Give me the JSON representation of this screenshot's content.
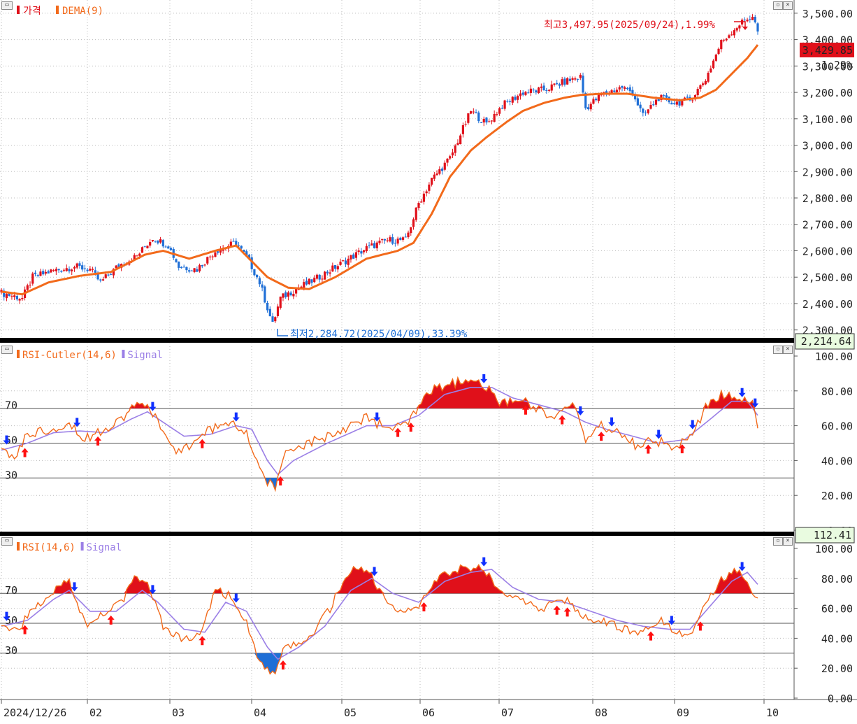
{
  "chart_data": {
    "type": "line",
    "x_ticks": [
      "2024/12/26",
      "02",
      "03",
      "04",
      "05",
      "06",
      "07",
      "08",
      "09",
      "10"
    ],
    "price_panel": {
      "legend": [
        "가격",
        "DEMA(9)"
      ],
      "y_ticks": [
        "3,500.00",
        "3,400.00",
        "3,300.00",
        "3,200.00",
        "3,100.00",
        "3,000.00",
        "2,900.00",
        "2,800.00",
        "2,700.00",
        "2,600.00",
        "2,500.00",
        "2,400.00",
        "2,300.00"
      ],
      "ylim": [
        2270,
        3550
      ],
      "current_price_label": "3,429.85",
      "current_change_label": "1.29%",
      "high_annotation": "최고3,497.95(2025/09/24),1.99%",
      "low_annotation": "최저2,284.72(2025/04/09),33.39%",
      "close_anchors": [
        [
          0,
          2440
        ],
        [
          8,
          2420
        ],
        [
          12,
          2500
        ],
        [
          20,
          2525
        ],
        [
          28,
          2540
        ],
        [
          34,
          2530
        ],
        [
          38,
          2480
        ],
        [
          45,
          2545
        ],
        [
          52,
          2580
        ],
        [
          58,
          2650
        ],
        [
          64,
          2620
        ],
        [
          68,
          2540
        ],
        [
          75,
          2530
        ],
        [
          82,
          2600
        ],
        [
          90,
          2630
        ],
        [
          95,
          2560
        ],
        [
          99,
          2480
        ],
        [
          104,
          2320
        ],
        [
          107,
          2420
        ],
        [
          112,
          2450
        ],
        [
          120,
          2490
        ],
        [
          130,
          2550
        ],
        [
          140,
          2610
        ],
        [
          148,
          2640
        ],
        [
          155,
          2640
        ],
        [
          160,
          2780
        ],
        [
          165,
          2870
        ],
        [
          172,
          2950
        ],
        [
          176,
          3040
        ],
        [
          180,
          3130
        ],
        [
          186,
          3080
        ],
        [
          192,
          3150
        ],
        [
          200,
          3200
        ],
        [
          208,
          3210
        ],
        [
          216,
          3240
        ],
        [
          222,
          3260
        ],
        [
          224,
          3140
        ],
        [
          230,
          3190
        ],
        [
          238,
          3220
        ],
        [
          242,
          3200
        ],
        [
          246,
          3110
        ],
        [
          252,
          3180
        ],
        [
          258,
          3160
        ],
        [
          264,
          3170
        ],
        [
          270,
          3250
        ],
        [
          276,
          3390
        ],
        [
          282,
          3450
        ],
        [
          286,
          3480
        ],
        [
          288,
          3490
        ],
        [
          290,
          3430
        ]
      ],
      "dema_anchors": [
        [
          0,
          2445
        ],
        [
          8,
          2435
        ],
        [
          18,
          2480
        ],
        [
          30,
          2505
        ],
        [
          42,
          2520
        ],
        [
          55,
          2585
        ],
        [
          62,
          2600
        ],
        [
          72,
          2570
        ],
        [
          82,
          2600
        ],
        [
          90,
          2620
        ],
        [
          96,
          2560
        ],
        [
          102,
          2500
        ],
        [
          110,
          2460
        ],
        [
          118,
          2455
        ],
        [
          128,
          2500
        ],
        [
          140,
          2570
        ],
        [
          152,
          2600
        ],
        [
          158,
          2630
        ],
        [
          165,
          2740
        ],
        [
          172,
          2880
        ],
        [
          180,
          2980
        ],
        [
          186,
          3030
        ],
        [
          194,
          3090
        ],
        [
          200,
          3130
        ],
        [
          208,
          3160
        ],
        [
          216,
          3180
        ],
        [
          222,
          3190
        ],
        [
          230,
          3195
        ],
        [
          240,
          3195
        ],
        [
          250,
          3180
        ],
        [
          260,
          3170
        ],
        [
          268,
          3180
        ],
        [
          274,
          3210
        ],
        [
          280,
          3270
        ],
        [
          286,
          3330
        ],
        [
          290,
          3380
        ]
      ]
    },
    "rsi_cutler_panel": {
      "legend": [
        "RSI-Cutler(14,6)",
        "Signal"
      ],
      "y_ticks": [
        "100.00",
        "80.00",
        "60.00",
        "40.00",
        "20.00",
        "0.00"
      ],
      "levels": [
        "70",
        "50",
        "30"
      ],
      "ylim": [
        0,
        100
      ],
      "axis_box_label": "2,214.64",
      "rsi_anchors": [
        [
          0,
          44
        ],
        [
          5,
          42
        ],
        [
          10,
          55
        ],
        [
          18,
          58
        ],
        [
          26,
          62
        ],
        [
          32,
          52
        ],
        [
          36,
          56
        ],
        [
          44,
          62
        ],
        [
          52,
          72
        ],
        [
          58,
          68
        ],
        [
          62,
          58
        ],
        [
          66,
          45
        ],
        [
          74,
          50
        ],
        [
          80,
          58
        ],
        [
          88,
          62
        ],
        [
          94,
          55
        ],
        [
          98,
          40
        ],
        [
          102,
          28
        ],
        [
          105,
          24
        ],
        [
          108,
          42
        ],
        [
          118,
          50
        ],
        [
          128,
          56
        ],
        [
          140,
          65
        ],
        [
          148,
          58
        ],
        [
          155,
          60
        ],
        [
          160,
          70
        ],
        [
          165,
          80
        ],
        [
          172,
          84
        ],
        [
          180,
          86
        ],
        [
          186,
          82
        ],
        [
          192,
          72
        ],
        [
          200,
          76
        ],
        [
          205,
          70
        ],
        [
          212,
          65
        ],
        [
          220,
          72
        ],
        [
          224,
          52
        ],
        [
          230,
          60
        ],
        [
          238,
          55
        ],
        [
          244,
          48
        ],
        [
          250,
          52
        ],
        [
          258,
          48
        ],
        [
          264,
          52
        ],
        [
          270,
          70
        ],
        [
          276,
          78
        ],
        [
          282,
          75
        ],
        [
          288,
          72
        ],
        [
          290,
          60
        ]
      ],
      "signal_anchors": [
        [
          0,
          46
        ],
        [
          10,
          50
        ],
        [
          20,
          56
        ],
        [
          30,
          57
        ],
        [
          40,
          56
        ],
        [
          50,
          64
        ],
        [
          56,
          68
        ],
        [
          62,
          62
        ],
        [
          70,
          54
        ],
        [
          80,
          55
        ],
        [
          90,
          60
        ],
        [
          96,
          58
        ],
        [
          102,
          40
        ],
        [
          106,
          32
        ],
        [
          112,
          40
        ],
        [
          125,
          50
        ],
        [
          140,
          60
        ],
        [
          150,
          60
        ],
        [
          160,
          66
        ],
        [
          170,
          78
        ],
        [
          180,
          82
        ],
        [
          188,
          82
        ],
        [
          196,
          76
        ],
        [
          206,
          72
        ],
        [
          216,
          68
        ],
        [
          224,
          62
        ],
        [
          232,
          58
        ],
        [
          242,
          54
        ],
        [
          252,
          50
        ],
        [
          262,
          52
        ],
        [
          272,
          64
        ],
        [
          280,
          74
        ],
        [
          286,
          74
        ],
        [
          290,
          66
        ]
      ]
    },
    "rsi_panel": {
      "legend": [
        "RSI(14,6)",
        "Signal"
      ],
      "y_ticks": [
        "100.00",
        "80.00",
        "60.00",
        "40.00",
        "20.00",
        "0.00"
      ],
      "levels": [
        "70",
        "50",
        "30"
      ],
      "ylim": [
        0,
        100
      ],
      "axis_box_label": "112.41",
      "rsi_anchors": [
        [
          0,
          48
        ],
        [
          6,
          46
        ],
        [
          14,
          62
        ],
        [
          22,
          76
        ],
        [
          26,
          80
        ],
        [
          30,
          56
        ],
        [
          34,
          48
        ],
        [
          40,
          58
        ],
        [
          46,
          64
        ],
        [
          52,
          82
        ],
        [
          56,
          76
        ],
        [
          62,
          48
        ],
        [
          70,
          38
        ],
        [
          76,
          42
        ],
        [
          82,
          72
        ],
        [
          88,
          68
        ],
        [
          94,
          50
        ],
        [
          98,
          30
        ],
        [
          102,
          18
        ],
        [
          105,
          14
        ],
        [
          108,
          32
        ],
        [
          118,
          40
        ],
        [
          126,
          60
        ],
        [
          130,
          74
        ],
        [
          136,
          88
        ],
        [
          142,
          82
        ],
        [
          148,
          62
        ],
        [
          155,
          58
        ],
        [
          160,
          60
        ],
        [
          166,
          78
        ],
        [
          174,
          86
        ],
        [
          182,
          88
        ],
        [
          188,
          80
        ],
        [
          192,
          70
        ],
        [
          200,
          64
        ],
        [
          208,
          60
        ],
        [
          216,
          66
        ],
        [
          224,
          54
        ],
        [
          232,
          50
        ],
        [
          240,
          46
        ],
        [
          246,
          44
        ],
        [
          252,
          52
        ],
        [
          258,
          46
        ],
        [
          264,
          42
        ],
        [
          270,
          64
        ],
        [
          276,
          80
        ],
        [
          282,
          86
        ],
        [
          288,
          72
        ],
        [
          290,
          68
        ]
      ],
      "signal_anchors": [
        [
          0,
          48
        ],
        [
          10,
          52
        ],
        [
          20,
          66
        ],
        [
          26,
          72
        ],
        [
          34,
          58
        ],
        [
          44,
          58
        ],
        [
          54,
          72
        ],
        [
          60,
          64
        ],
        [
          70,
          46
        ],
        [
          78,
          44
        ],
        [
          86,
          64
        ],
        [
          94,
          58
        ],
        [
          102,
          34
        ],
        [
          106,
          26
        ],
        [
          114,
          34
        ],
        [
          124,
          48
        ],
        [
          134,
          72
        ],
        [
          142,
          80
        ],
        [
          150,
          70
        ],
        [
          160,
          64
        ],
        [
          170,
          78
        ],
        [
          180,
          84
        ],
        [
          188,
          86
        ],
        [
          196,
          74
        ],
        [
          206,
          66
        ],
        [
          216,
          64
        ],
        [
          226,
          58
        ],
        [
          236,
          52
        ],
        [
          246,
          48
        ],
        [
          256,
          46
        ],
        [
          264,
          46
        ],
        [
          272,
          62
        ],
        [
          280,
          78
        ],
        [
          286,
          84
        ],
        [
          290,
          76
        ]
      ]
    }
  }
}
